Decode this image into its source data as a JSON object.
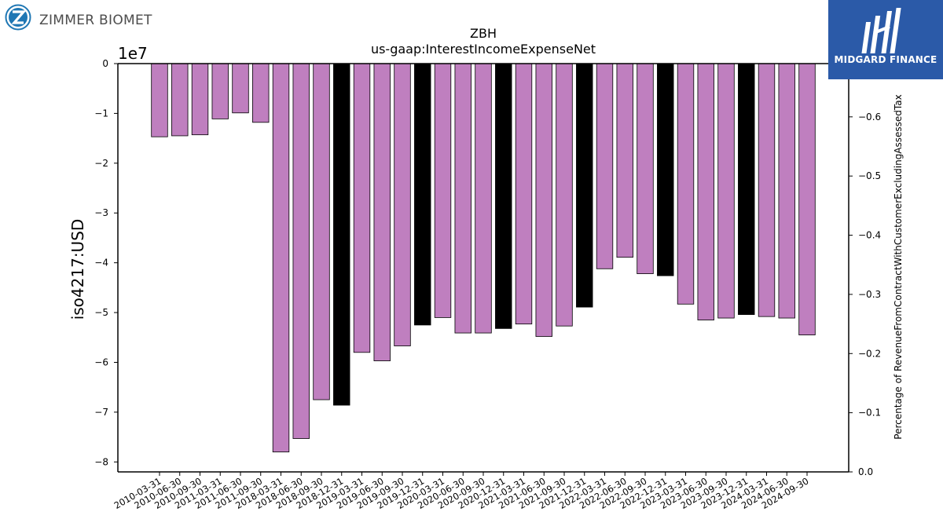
{
  "logos": {
    "left_brand": "ZIMMER BIOMET",
    "right_brand": "MIDGARD FINANCE"
  },
  "chart_data": {
    "type": "bar",
    "title": "ZBH",
    "subtitle": "us-gaap:InterestIncomeExpenseNet",
    "ylabel": "iso4217:USD",
    "y2label": "Percentage of RevenueFromContractWithCustomerExcludingAssessedTax",
    "y_scale_label": "1e7",
    "ylim": [
      -8.2,
      0
    ],
    "y2lim": [
      0,
      -0.69
    ],
    "yticks": [
      "0",
      "−1",
      "−2",
      "−3",
      "−4",
      "−5",
      "−6",
      "−7",
      "−8"
    ],
    "y2ticks": [
      "0.0",
      "−0.1",
      "−0.2",
      "−0.3",
      "−0.4",
      "−0.5",
      "−0.6"
    ],
    "y2tick_values": [
      0,
      -0.1,
      -0.2,
      -0.3,
      -0.4,
      -0.5,
      -0.6
    ],
    "categories": [
      "2010-03-31",
      "2010-06-30",
      "2010-09-30",
      "2011-03-31",
      "2011-06-30",
      "2011-09-30",
      "2018-03-31",
      "2018-06-30",
      "2018-09-30",
      "2018-12-31",
      "2019-03-31",
      "2019-06-30",
      "2019-09-30",
      "2019-12-31",
      "2020-03-31",
      "2020-06-30",
      "2020-09-30",
      "2020-12-31",
      "2021-03-31",
      "2021-06-30",
      "2021-09-30",
      "2021-12-31",
      "2022-03-31",
      "2022-06-30",
      "2022-09-30",
      "2022-12-31",
      "2023-03-31",
      "2023-06-30",
      "2023-09-30",
      "2023-12-31",
      "2024-03-31",
      "2024-06-30",
      "2024-09-30"
    ],
    "values": [
      -1.47,
      -1.45,
      -1.43,
      -1.11,
      -0.99,
      -1.18,
      -7.8,
      -7.53,
      -6.75,
      -6.86,
      -5.8,
      -5.97,
      -5.67,
      -5.25,
      -5.1,
      -5.41,
      -5.41,
      -5.32,
      -5.23,
      -5.48,
      -5.27,
      -4.89,
      -4.12,
      -3.89,
      -4.22,
      -4.26,
      -4.83,
      -5.15,
      -5.11,
      -5.04,
      -5.08,
      -5.11,
      -5.45
    ],
    "bar_colors": [
      "#bf7fbf",
      "#bf7fbf",
      "#bf7fbf",
      "#bf7fbf",
      "#bf7fbf",
      "#bf7fbf",
      "#bf7fbf",
      "#bf7fbf",
      "#bf7fbf",
      "#000000",
      "#bf7fbf",
      "#bf7fbf",
      "#bf7fbf",
      "#000000",
      "#bf7fbf",
      "#bf7fbf",
      "#bf7fbf",
      "#000000",
      "#bf7fbf",
      "#bf7fbf",
      "#bf7fbf",
      "#000000",
      "#bf7fbf",
      "#bf7fbf",
      "#bf7fbf",
      "#000000",
      "#bf7fbf",
      "#bf7fbf",
      "#bf7fbf",
      "#000000",
      "#bf7fbf",
      "#bf7fbf",
      "#bf7fbf"
    ],
    "grid": false,
    "legend": "none"
  }
}
